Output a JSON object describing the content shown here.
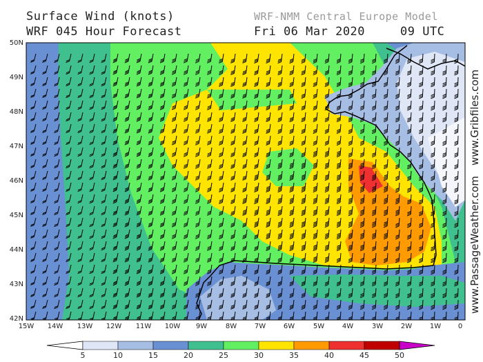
{
  "header": {
    "title_line1": "Surface Wind (knots)",
    "title_line2": "WRF 045 Hour Forecast",
    "model": "WRF-NMM Central Europe Model",
    "date": "Fri 06 Mar 2020",
    "time": "09 UTC"
  },
  "credits": {
    "site1": "www.Gribfiles.com",
    "site2": "www.PassageWeather.com"
  },
  "axes": {
    "lat_labels": [
      "50N",
      "49N",
      "48N",
      "47N",
      "46N",
      "45N",
      "44N",
      "43N",
      "42N"
    ],
    "lon_labels": [
      "15W",
      "14W",
      "13W",
      "12W",
      "11W",
      "10W",
      "9W",
      "8W",
      "7W",
      "6W",
      "5W",
      "4W",
      "3W",
      "2W",
      "1W",
      "0"
    ]
  },
  "colorbar": {
    "labels": [
      "5",
      "10",
      "15",
      "20",
      "25",
      "30",
      "35",
      "40",
      "45",
      "50"
    ],
    "colors": [
      "#ffffff",
      "#dfe6f6",
      "#a6bde4",
      "#6a90d4",
      "#3fc08e",
      "#62f062",
      "#ffe400",
      "#ff9a00",
      "#ee3030",
      "#c00000",
      "#c800c8"
    ]
  },
  "palette": {
    "light_blue": "#a6bde4",
    "blue": "#6a90d4",
    "teal": "#3fc08e",
    "green": "#62f062",
    "yellow": "#ffe400",
    "orange": "#ff9a00",
    "red": "#ee3030",
    "pale": "#dfe6f6",
    "white": "#f4f6fc"
  }
}
